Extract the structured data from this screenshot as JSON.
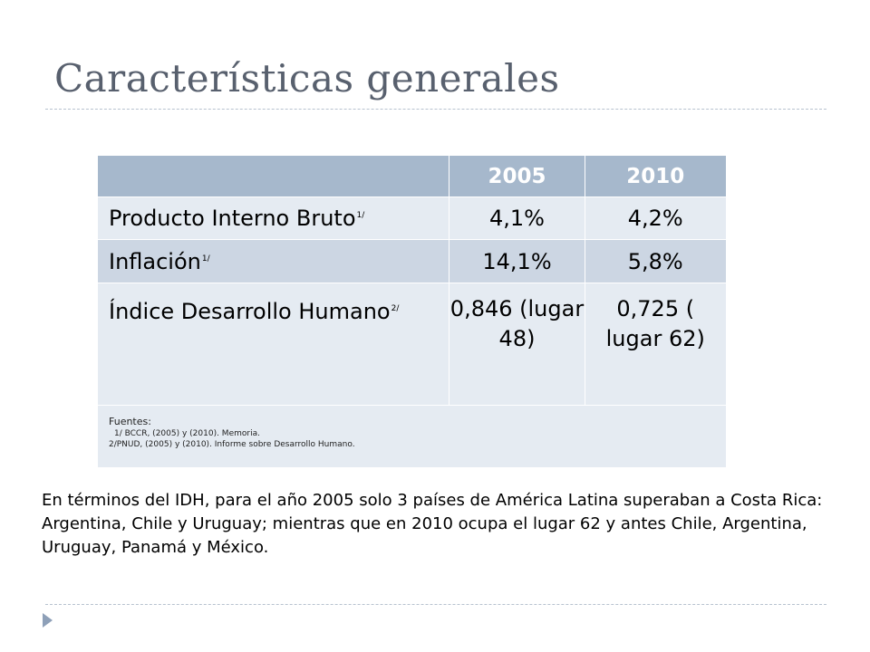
{
  "slide": {
    "title": "Características generales"
  },
  "table": {
    "headers": [
      "",
      "2005",
      "2010"
    ],
    "rows": [
      {
        "label": "Producto Interno Bruto",
        "note": "1/",
        "v2005": "4,1%",
        "v2010": "4,2%"
      },
      {
        "label": "Inflación",
        "note": "1/",
        "v2005": "14,1%",
        "v2010": "5,8%"
      },
      {
        "label": "Índice Desarrollo Humano",
        "note": "2/",
        "v2005": "0,846 (lugar 48)",
        "v2010": "0,725 ( lugar 62)"
      }
    ],
    "sources": {
      "heading": "Fuentes:",
      "lines": [
        "1/ BCCR, (2005) y (2010). Memoria.",
        "2/PNUD, (2005) y (2010). Informe sobre Desarrollo Humano."
      ]
    }
  },
  "body": {
    "paragraph": "En términos del IDH, para el año 2005 solo 3 países de América Latina superaban a Costa Rica: Argentina, Chile y Uruguay; mientras que en 2010  ocupa el lugar 62 y antes Chile, Argentina, Uruguay, Panamá y  México."
  },
  "icons": {
    "bullet": "triangle-bullet-icon",
    "bullet_color": "#8ea0b8"
  },
  "colors": {
    "title": "#58606e",
    "header_bg": "#a6b8cc",
    "row_light": "#e5ebf2",
    "row_dark": "#ccd6e3"
  }
}
